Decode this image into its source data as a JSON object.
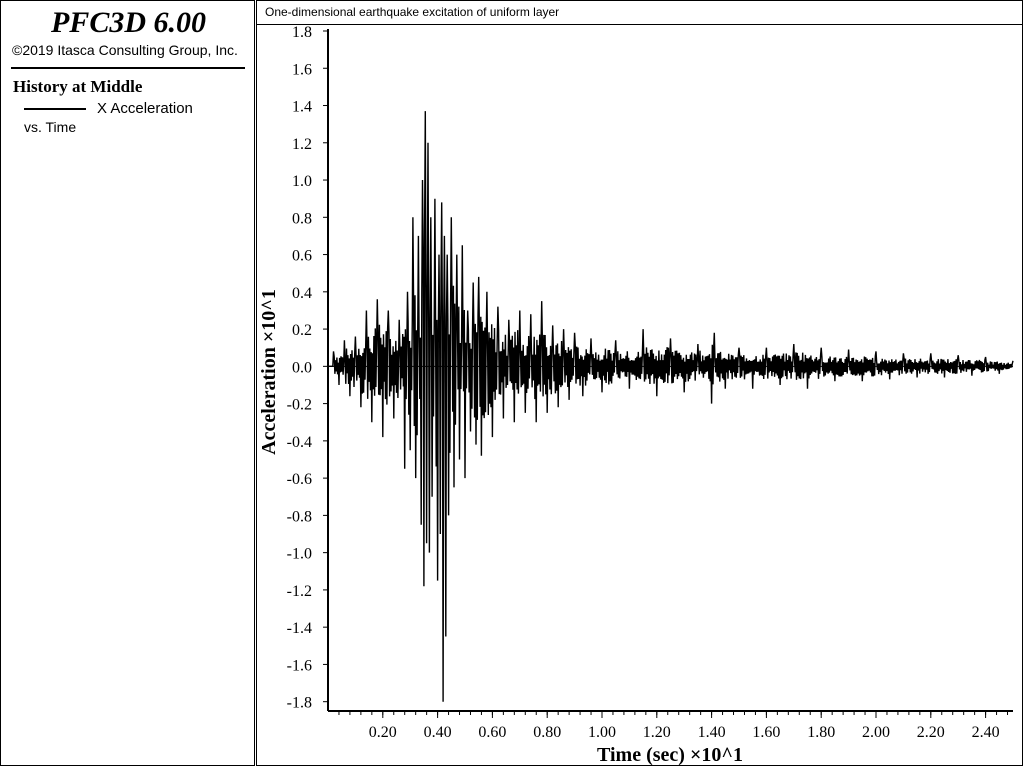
{
  "app": {
    "title": "PFC3D 6.00",
    "copyright": "©2019 Itasca Consulting Group, Inc."
  },
  "panel": {
    "history_title": "History at Middle",
    "legend_label": "X Acceleration",
    "legend_sub": "vs. Time"
  },
  "caption": "One-dimensional earthquake excitation of uniform layer",
  "chart_data": {
    "type": "line",
    "title": "",
    "xlabel": "Time (sec) ×10^1",
    "ylabel": "Acceleration ×10^1",
    "xlim": [
      0,
      2.5
    ],
    "ylim": [
      -1.85,
      1.8
    ],
    "x_ticks": [
      0.2,
      0.4,
      0.6,
      0.8,
      1.0,
      1.2,
      1.4,
      1.6,
      1.8,
      2.0,
      2.2,
      2.4
    ],
    "x_tick_labels": [
      "0.20",
      "0.40",
      "0.60",
      "0.80",
      "1.00",
      "1.20",
      "1.40",
      "1.60",
      "1.80",
      "2.00",
      "2.20",
      "2.40"
    ],
    "y_ticks": [
      1.8,
      1.6,
      1.4,
      1.2,
      1.0,
      0.8,
      0.6,
      0.4,
      0.2,
      0.0,
      -0.2,
      -0.4,
      -0.6,
      -0.8,
      -1.0,
      -1.2,
      -1.4,
      -1.6,
      -1.8
    ],
    "y_tick_labels": [
      "1.8",
      "1.6",
      "1.4",
      "1.2",
      "1.0",
      "0.8",
      "0.6",
      "0.4",
      "0.2",
      "0.0",
      "-0.2",
      "-0.4",
      "-0.6",
      "-0.8",
      "-1.0",
      "-1.2",
      "-1.4",
      "-1.6",
      "-1.8"
    ],
    "grid": false,
    "line_color": "#000000",
    "series": [
      {
        "name": "X Acceleration",
        "x": [
          0.0,
          0.02,
          0.04,
          0.06,
          0.08,
          0.1,
          0.12,
          0.14,
          0.16,
          0.18,
          0.2,
          0.22,
          0.24,
          0.26,
          0.28,
          0.29,
          0.3,
          0.31,
          0.32,
          0.33,
          0.34,
          0.345,
          0.35,
          0.355,
          0.36,
          0.365,
          0.37,
          0.375,
          0.38,
          0.39,
          0.4,
          0.405,
          0.41,
          0.415,
          0.42,
          0.425,
          0.43,
          0.435,
          0.44,
          0.45,
          0.46,
          0.47,
          0.48,
          0.49,
          0.5,
          0.51,
          0.52,
          0.53,
          0.54,
          0.55,
          0.56,
          0.58,
          0.6,
          0.62,
          0.64,
          0.66,
          0.68,
          0.7,
          0.72,
          0.74,
          0.76,
          0.78,
          0.8,
          0.82,
          0.84,
          0.86,
          0.88,
          0.9,
          0.93,
          0.96,
          1.0,
          1.05,
          1.1,
          1.15,
          1.2,
          1.25,
          1.3,
          1.35,
          1.4,
          1.41,
          1.45,
          1.5,
          1.55,
          1.6,
          1.65,
          1.7,
          1.75,
          1.8,
          1.85,
          1.9,
          1.95,
          2.0,
          2.05,
          2.1,
          2.15,
          2.2,
          2.25,
          2.3,
          2.35,
          2.4,
          2.45,
          2.5
        ],
        "values": [
          0.0,
          0.08,
          -0.1,
          0.14,
          -0.16,
          0.16,
          -0.22,
          0.3,
          -0.3,
          0.36,
          -0.38,
          0.3,
          -0.28,
          0.25,
          -0.55,
          0.4,
          -0.45,
          0.8,
          -0.6,
          0.7,
          -0.85,
          1.0,
          -1.18,
          1.37,
          -0.95,
          1.2,
          -1.0,
          0.8,
          -0.7,
          0.9,
          -1.15,
          0.6,
          -0.9,
          0.88,
          -1.8,
          0.7,
          -1.45,
          0.6,
          -0.8,
          0.8,
          -0.65,
          0.6,
          -0.5,
          0.65,
          -0.6,
          0.3,
          -0.35,
          0.45,
          -0.42,
          0.48,
          -0.48,
          0.4,
          -0.38,
          0.32,
          -0.28,
          0.25,
          -0.3,
          0.3,
          -0.25,
          0.28,
          -0.3,
          0.35,
          -0.25,
          0.22,
          -0.22,
          0.2,
          -0.18,
          0.18,
          -0.16,
          0.15,
          -0.14,
          0.14,
          -0.12,
          0.2,
          -0.16,
          0.15,
          -0.14,
          0.12,
          -0.2,
          0.18,
          -0.12,
          0.1,
          -0.12,
          0.1,
          -0.1,
          0.12,
          -0.12,
          0.1,
          -0.08,
          0.09,
          -0.08,
          0.08,
          -0.07,
          0.07,
          -0.06,
          0.07,
          -0.06,
          0.06,
          -0.05,
          0.05,
          -0.04,
          0.03
        ]
      }
    ]
  }
}
